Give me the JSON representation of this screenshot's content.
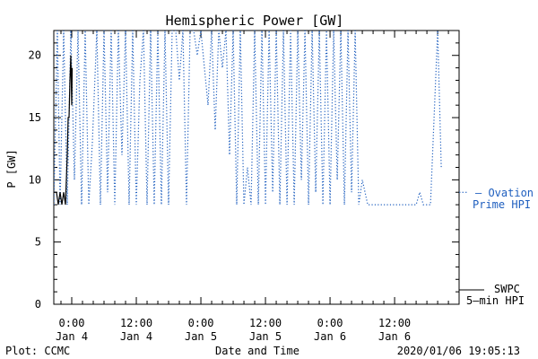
{
  "chart_data": {
    "type": "line",
    "title": "Hemispheric Power [GW]",
    "xlabel": "Date and Time",
    "ylabel": "P [GW]",
    "ylim": [
      0,
      22
    ],
    "xlim": [
      "2020-01-03 20:40",
      "2020-01-06 23:59"
    ],
    "yticks": [
      0,
      5,
      10,
      15,
      20
    ],
    "grid": false,
    "xticks": [
      {
        "x": "2020-01-04 00:00",
        "line1": "0:00",
        "line2": "Jan 4"
      },
      {
        "x": "2020-01-04 12:00",
        "line1": "12:00",
        "line2": "Jan 4"
      },
      {
        "x": "2020-01-05 00:00",
        "line1": "0:00",
        "line2": "Jan 5"
      },
      {
        "x": "2020-01-05 12:00",
        "line1": "12:00",
        "line2": "Jan 5"
      },
      {
        "x": "2020-01-06 00:00",
        "line1": "0:00",
        "line2": "Jan 6"
      },
      {
        "x": "2020-01-06 12:00",
        "line1": "12:00",
        "line2": "Jan 6"
      }
    ],
    "series": [
      {
        "name": "Ovation Prime HPI",
        "legend_line1": "— Ovation",
        "legend_line2": "Prime HPI",
        "color": "#1f5fbf",
        "style": "dotted",
        "x": [
          "2020-01-03 20:40",
          "2020-01-03 21:20",
          "2020-01-03 21:50",
          "2020-01-03 22:30",
          "2020-01-03 23:10",
          "2020-01-03 23:50",
          "2020-01-04 00:30",
          "2020-01-04 01:10",
          "2020-01-04 01:50",
          "2020-01-04 02:30",
          "2020-01-04 03:10",
          "2020-01-04 03:50",
          "2020-01-04 04:40",
          "2020-01-04 05:20",
          "2020-01-04 06:00",
          "2020-01-04 06:40",
          "2020-01-04 07:20",
          "2020-01-04 08:00",
          "2020-01-04 08:40",
          "2020-01-04 09:20",
          "2020-01-04 10:00",
          "2020-01-04 10:40",
          "2020-01-04 11:20",
          "2020-01-04 12:00",
          "2020-01-04 12:40",
          "2020-01-04 13:20",
          "2020-01-04 14:00",
          "2020-01-04 14:40",
          "2020-01-04 15:20",
          "2020-01-04 16:00",
          "2020-01-04 16:40",
          "2020-01-04 17:20",
          "2020-01-04 18:00",
          "2020-01-04 18:40",
          "2020-01-04 19:20",
          "2020-01-04 20:00",
          "2020-01-04 20:40",
          "2020-01-04 21:20",
          "2020-01-04 22:00",
          "2020-01-04 22:40",
          "2020-01-04 23:20",
          "2020-01-05 00:00",
          "2020-01-05 00:40",
          "2020-01-05 01:20",
          "2020-01-05 02:00",
          "2020-01-05 02:40",
          "2020-01-05 03:20",
          "2020-01-05 04:00",
          "2020-01-05 04:40",
          "2020-01-05 05:20",
          "2020-01-05 06:00",
          "2020-01-05 06:40",
          "2020-01-05 07:20",
          "2020-01-05 08:00",
          "2020-01-05 08:40",
          "2020-01-05 09:20",
          "2020-01-05 10:00",
          "2020-01-05 10:40",
          "2020-01-05 11:20",
          "2020-01-05 12:00",
          "2020-01-05 12:40",
          "2020-01-05 13:20",
          "2020-01-05 14:00",
          "2020-01-05 14:40",
          "2020-01-05 15:20",
          "2020-01-05 16:00",
          "2020-01-05 16:40",
          "2020-01-05 17:20",
          "2020-01-05 18:00",
          "2020-01-05 18:40",
          "2020-01-05 19:20",
          "2020-01-05 20:00",
          "2020-01-05 20:40",
          "2020-01-05 21:20",
          "2020-01-05 22:00",
          "2020-01-05 22:40",
          "2020-01-05 23:20",
          "2020-01-06 00:00",
          "2020-01-06 00:40",
          "2020-01-06 01:20",
          "2020-01-06 02:00",
          "2020-01-06 02:40",
          "2020-01-06 03:20",
          "2020-01-06 04:00",
          "2020-01-06 04:40",
          "2020-01-06 05:20",
          "2020-01-06 06:00",
          "2020-01-06 07:00",
          "2020-01-06 08:00",
          "2020-01-06 09:00",
          "2020-01-06 10:00",
          "2020-01-06 11:00",
          "2020-01-06 12:00",
          "2020-01-06 13:00",
          "2020-01-06 14:00",
          "2020-01-06 15:00",
          "2020-01-06 16:00",
          "2020-01-06 16:40",
          "2020-01-06 17:20",
          "2020-01-06 18:00",
          "2020-01-06 18:40",
          "2020-01-06 19:20",
          "2020-01-06 20:00",
          "2020-01-06 20:40"
        ],
        "y": [
          8,
          22,
          8,
          22,
          8,
          22,
          10,
          22,
          8,
          22,
          8,
          13,
          22,
          8,
          22,
          9,
          22,
          8,
          22,
          12,
          22,
          8,
          22,
          8,
          18,
          22,
          8,
          22,
          8,
          22,
          8,
          22,
          8,
          22,
          22,
          18,
          22,
          8,
          22,
          22,
          20,
          22,
          19,
          16,
          22,
          14,
          22,
          19,
          22,
          12,
          22,
          8,
          22,
          8,
          11,
          8,
          22,
          8,
          22,
          8,
          22,
          9,
          22,
          8,
          22,
          8,
          22,
          8,
          22,
          10,
          22,
          8,
          22,
          9,
          22,
          8,
          22,
          8,
          22,
          10,
          22,
          8,
          22,
          9,
          22,
          8,
          10,
          8,
          8,
          8,
          8,
          8,
          8,
          8,
          8,
          8,
          8,
          9,
          8,
          8,
          8,
          15,
          22,
          11
        ]
      },
      {
        "name": "SWPC 5-min HPI",
        "legend_line1": "SWPC",
        "legend_line2": "5—min HPI",
        "color": "#000000",
        "style": "solid",
        "x": [
          "2020-01-03 20:40",
          "2020-01-03 21:10",
          "2020-01-03 21:30",
          "2020-01-03 21:50",
          "2020-01-03 22:10",
          "2020-01-03 22:30",
          "2020-01-03 22:50",
          "2020-01-03 23:00",
          "2020-01-03 23:10",
          "2020-01-03 23:20",
          "2020-01-03 23:30",
          "2020-01-03 23:40",
          "2020-01-03 23:50",
          "2020-01-04 00:00",
          "2020-01-04 00:05"
        ],
        "y": [
          9,
          9,
          8,
          9,
          8,
          9,
          8,
          10,
          12,
          15,
          15,
          18,
          20,
          16,
          19
        ]
      }
    ]
  },
  "footer": {
    "left": "Plot: CCMC",
    "center": "Date and Time",
    "right": "2020/01/06 19:05:13"
  }
}
